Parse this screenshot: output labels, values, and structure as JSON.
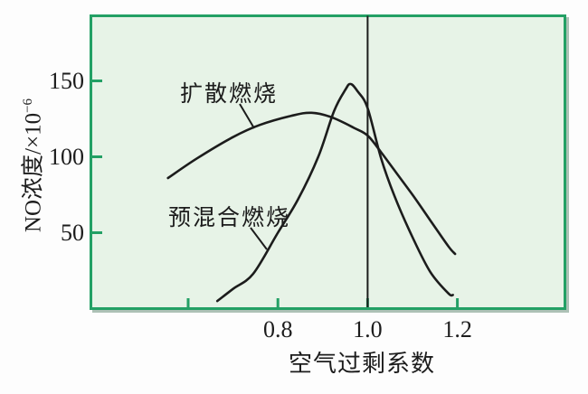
{
  "colors": {
    "page_background": "#fdfdfd",
    "plot_background": "#e7f3e7",
    "border_green": "#23a065",
    "shadow": "#6b8f7c",
    "line_black": "#1c1c1c"
  },
  "ylabel": {
    "main": "NO浓度/×10",
    "exponent": "−6"
  },
  "xlabel": "空气过剩系数",
  "chart_data": {
    "type": "line",
    "title": "",
    "xlabel": "空气过剩系数",
    "ylabel": "NO浓度/×10⁻⁶",
    "xlim": [
      0.38,
      1.44
    ],
    "ylim": [
      0,
      193
    ],
    "grid": false,
    "legend_position": "inline-annotations",
    "vertical_reference_x": 1.0,
    "x_ticks": [
      {
        "v": 0.6,
        "label": ""
      },
      {
        "v": 0.8,
        "label": "0.8"
      },
      {
        "v": 1.0,
        "label": "1.0"
      },
      {
        "v": 1.2,
        "label": "1.2"
      }
    ],
    "y_ticks": [
      {
        "v": 50,
        "label": "50"
      },
      {
        "v": 100,
        "label": "100"
      },
      {
        "v": 150,
        "label": "150"
      }
    ],
    "series": [
      {
        "name": "扩散燃烧",
        "points": [
          [
            0.555,
            86
          ],
          [
            0.62,
            99
          ],
          [
            0.7,
            113
          ],
          [
            0.76,
            121
          ],
          [
            0.83,
            127
          ],
          [
            0.875,
            129
          ],
          [
            0.92,
            126
          ],
          [
            0.97,
            119
          ],
          [
            1.0,
            114
          ],
          [
            1.03,
            103
          ],
          [
            1.06,
            91
          ],
          [
            1.1,
            75
          ],
          [
            1.14,
            58
          ],
          [
            1.18,
            41
          ],
          [
            1.195,
            36
          ]
        ]
      },
      {
        "name": "预混合燃烧",
        "points": [
          [
            0.665,
            5
          ],
          [
            0.7,
            13
          ],
          [
            0.745,
            23
          ],
          [
            0.8,
            50
          ],
          [
            0.845,
            72
          ],
          [
            0.89,
            100
          ],
          [
            0.925,
            130
          ],
          [
            0.95,
            144
          ],
          [
            0.962,
            148
          ],
          [
            0.978,
            143
          ],
          [
            1.0,
            132
          ],
          [
            1.03,
            99
          ],
          [
            1.06,
            74
          ],
          [
            1.1,
            47
          ],
          [
            1.14,
            24
          ],
          [
            1.18,
            10
          ],
          [
            1.19,
            9
          ]
        ]
      }
    ],
    "annotations": [
      {
        "text": "扩散燃烧",
        "leader_from_xy": [
          265,
          115
        ],
        "leader_to_xy": [
          281,
          142
        ]
      },
      {
        "text": "预混合燃烧",
        "leader_from_xy": [
          277,
          252
        ],
        "leader_to_xy": [
          295,
          276
        ]
      }
    ]
  }
}
